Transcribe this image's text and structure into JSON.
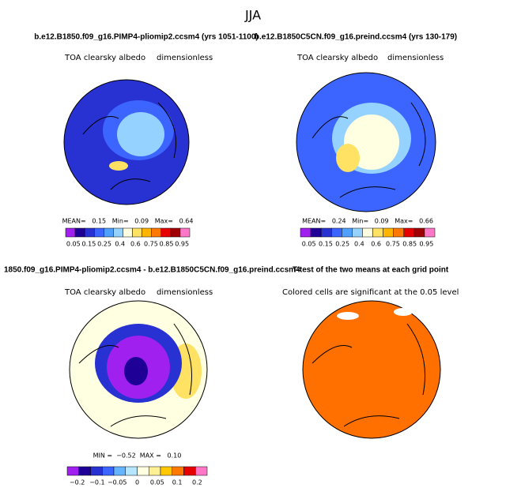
{
  "title": "JJA",
  "panels": [
    {
      "title": "b.e12.B1850.f09_g16.PIMP4-pliomip2.ccsm4 (yrs 1051-1100)",
      "field": "TOA clearsky albedo",
      "units": "dimensionless",
      "stats": "MEAN=   0.15   Min=   0.09   Max=   0.64",
      "colorbar": {
        "colors": [
          "#a020f0",
          "#1e0096",
          "#2832d2",
          "#3c64ff",
          "#50a0ff",
          "#96d2ff",
          "#ffffe1",
          "#ffe164",
          "#ffb400",
          "#ff7800",
          "#e60000",
          "#a00000",
          "#ff78c8"
        ],
        "labels": [
          "0.05",
          "0.15",
          "0.25",
          "0.4",
          "0.6",
          "0.75",
          "0.85",
          "0.95"
        ]
      }
    },
    {
      "title": "b.e12.B1850C5CN.f09_g16.preind.ccsm4 (yrs 130-179)",
      "field": "TOA clearsky albedo",
      "units": "dimensionless",
      "stats": "MEAN=   0.24   Min=   0.09   Max=   0.66",
      "colorbar": {
        "colors": [
          "#a020f0",
          "#1e0096",
          "#2832d2",
          "#3c64ff",
          "#50a0ff",
          "#96d2ff",
          "#ffffe1",
          "#ffe164",
          "#ffb400",
          "#ff7800",
          "#e60000",
          "#a00000",
          "#ff78c8"
        ],
        "labels": [
          "0.05",
          "0.15",
          "0.25",
          "0.4",
          "0.6",
          "0.75",
          "0.85",
          "0.95"
        ]
      }
    },
    {
      "title": "1850.f09_g16.PIMP4-pliomip2.ccsm4 - b.e12.B1850C5CN.f09_g16.preind.ccsm4",
      "field": "TOA clearsky albedo",
      "units": "dimensionless",
      "stats": "MIN =  −0.52  MAX =   0.10",
      "colorbar": {
        "colors": [
          "#a020f0",
          "#1e0096",
          "#2832d2",
          "#3c64ff",
          "#64b4ff",
          "#b4e6ff",
          "#ffffe1",
          "#fff096",
          "#ffc800",
          "#ff7800",
          "#e60000",
          "#ff78c8"
        ],
        "labels": [
          "−0.2",
          "−0.1",
          "−0.05",
          "0",
          "0.05",
          "0.1",
          "0.2"
        ]
      }
    },
    {
      "title": "T-test of the two means at each grid point",
      "field": "Colored cells are significant at the 0.05 level"
    }
  ]
}
